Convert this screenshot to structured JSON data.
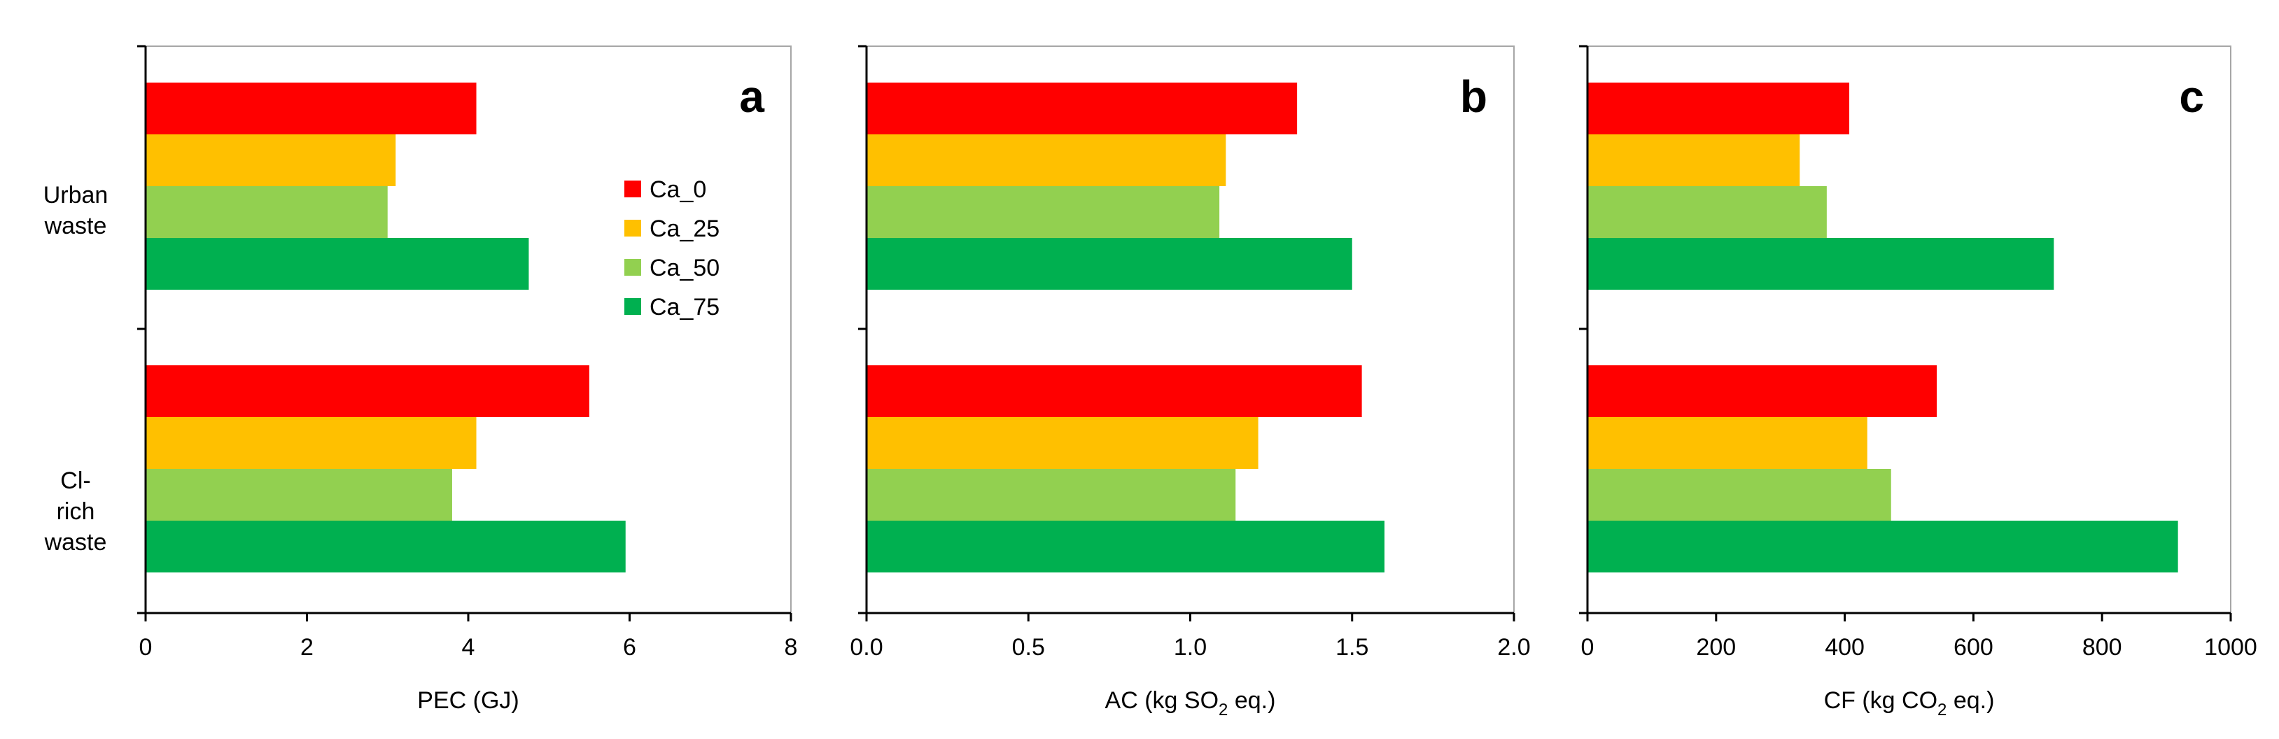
{
  "chart_data": {
    "type": "bar",
    "orientation": "horizontal",
    "categories": [
      "Urban\nwaste",
      "Cl-\nrich\nwaste"
    ],
    "legend": {
      "placement": "inside-right of panel a",
      "entries": [
        "Ca_0",
        "Ca_25",
        "Ca_50",
        "Ca_75"
      ]
    },
    "colors": {
      "Ca_0": "#ff0000",
      "Ca_25": "#ffc000",
      "Ca_50": "#92d050",
      "Ca_75": "#00b050"
    },
    "panels": [
      {
        "letter": "a",
        "xlabel_prefix": "PEC (GJ)",
        "xlabel_sub": "",
        "xlabel_suffix": "",
        "xlim": [
          0,
          8
        ],
        "xticks": [
          0,
          2,
          4,
          6,
          8
        ],
        "xtick_labels": [
          "0",
          "2",
          "4",
          "6",
          "8"
        ],
        "series": [
          {
            "name": "Ca_0",
            "values": [
              4.1,
              5.5
            ]
          },
          {
            "name": "Ca_25",
            "values": [
              3.1,
              4.1
            ]
          },
          {
            "name": "Ca_50",
            "values": [
              3.0,
              3.8
            ]
          },
          {
            "name": "Ca_75",
            "values": [
              4.75,
              5.95
            ]
          }
        ]
      },
      {
        "letter": "b",
        "xlabel_prefix": "AC (kg SO",
        "xlabel_sub": "2",
        "xlabel_suffix": " eq.)",
        "xlim": [
          0,
          2
        ],
        "xticks": [
          0,
          0.5,
          1,
          1.5,
          2
        ],
        "xtick_labels": [
          "0.0",
          "0.5",
          "1.0",
          "1.5",
          "2.0"
        ],
        "series": [
          {
            "name": "Ca_0",
            "values": [
              1.33,
              1.53
            ]
          },
          {
            "name": "Ca_25",
            "values": [
              1.11,
              1.21
            ]
          },
          {
            "name": "Ca_50",
            "values": [
              1.09,
              1.14
            ]
          },
          {
            "name": "Ca_75",
            "values": [
              1.5,
              1.6
            ]
          }
        ]
      },
      {
        "letter": "c",
        "xlabel_prefix": "CF (kg CO",
        "xlabel_sub": "2",
        "xlabel_suffix": " eq.)",
        "xlim": [
          0,
          1000
        ],
        "xticks": [
          0,
          200,
          400,
          600,
          800,
          1000
        ],
        "xtick_labels": [
          "0",
          "200",
          "400",
          "600",
          "800",
          "1000"
        ],
        "series": [
          {
            "name": "Ca_0",
            "values": [
              407,
              543
            ]
          },
          {
            "name": "Ca_25",
            "values": [
              330,
              435
            ]
          },
          {
            "name": "Ca_50",
            "values": [
              372,
              472
            ]
          },
          {
            "name": "Ca_75",
            "values": [
              725,
              918
            ]
          }
        ]
      }
    ]
  }
}
